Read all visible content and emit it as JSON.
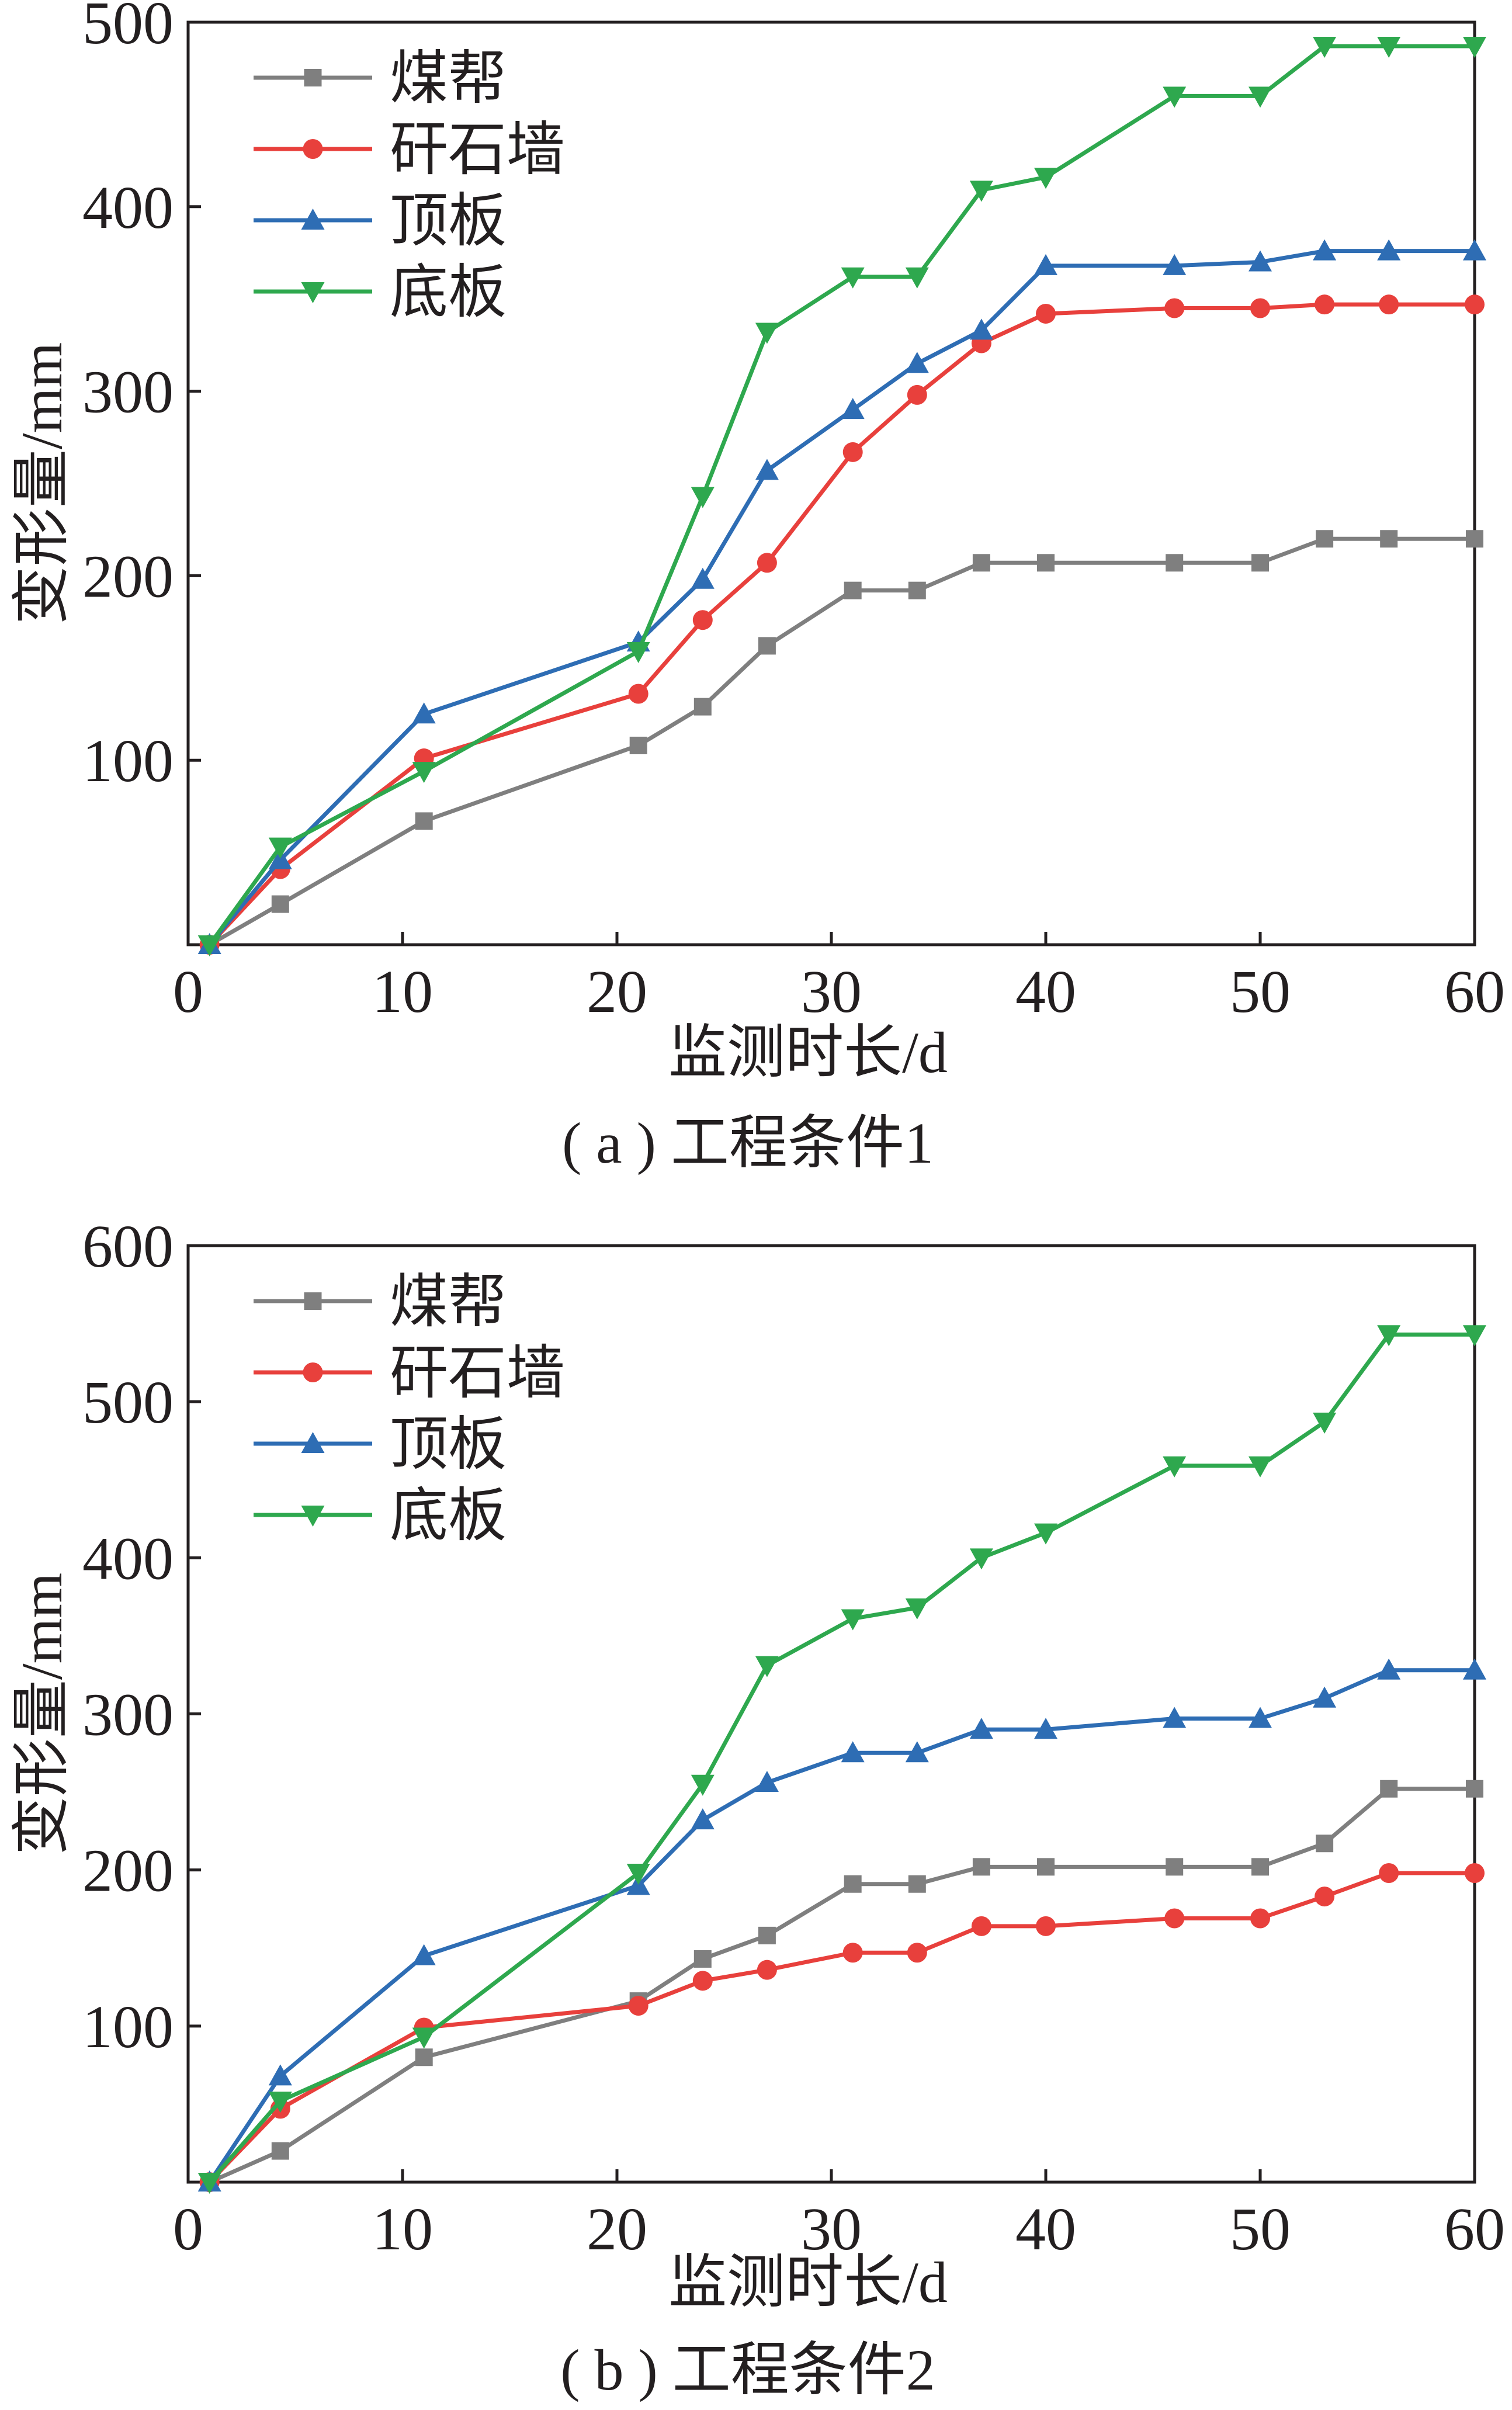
{
  "chart_data": [
    {
      "type": "line",
      "caption": "( a ) 工程条件1",
      "xlabel": "监测时长/d",
      "ylabel": "变形量/mm",
      "xlim": [
        0,
        60
      ],
      "ylim": [
        0,
        500
      ],
      "xticks": [
        0,
        10,
        20,
        30,
        40,
        50,
        60
      ],
      "yticks": [
        100,
        200,
        300,
        400,
        500
      ],
      "legend_position": "top-left",
      "x": [
        1,
        4.3,
        11,
        21,
        24,
        27,
        31,
        34,
        37,
        40,
        46,
        50,
        53,
        56,
        60
      ],
      "series": [
        {
          "name": "煤帮",
          "color": "#7f7f7f",
          "marker": "square",
          "values": [
            0,
            22,
            67,
            108,
            129,
            162,
            192,
            192,
            207,
            207,
            207,
            207,
            220,
            220,
            220
          ]
        },
        {
          "name": "矸石墙",
          "color": "#e8403c",
          "marker": "circle",
          "values": [
            0,
            41,
            101,
            136,
            176,
            207,
            267,
            298,
            326,
            342,
            345,
            345,
            347,
            347,
            347
          ]
        },
        {
          "name": "顶板",
          "color": "#2e6db4",
          "marker": "triangle-up",
          "values": [
            0,
            46,
            125,
            164,
            198,
            257,
            290,
            315,
            333,
            368,
            368,
            370,
            376,
            376,
            376
          ]
        },
        {
          "name": "底板",
          "color": "#2ea84e",
          "marker": "triangle-down",
          "values": [
            0,
            53,
            94,
            159,
            243,
            332,
            362,
            362,
            409,
            416,
            460,
            460,
            487,
            487,
            487
          ]
        }
      ]
    },
    {
      "type": "line",
      "caption": "( b ) 工程条件2",
      "xlabel": "监测时长/d",
      "ylabel": "变形量/mm",
      "xlim": [
        0,
        60
      ],
      "ylim": [
        0,
        600
      ],
      "xticks": [
        0,
        10,
        20,
        30,
        40,
        50,
        60
      ],
      "yticks": [
        100,
        200,
        300,
        400,
        500,
        600
      ],
      "legend_position": "top-left",
      "x": [
        1,
        4.3,
        11,
        21,
        24,
        27,
        31,
        34,
        37,
        40,
        46,
        50,
        53,
        56,
        60
      ],
      "series": [
        {
          "name": "煤帮",
          "color": "#7f7f7f",
          "marker": "square",
          "values": [
            0,
            20,
            80,
            116,
            143,
            158,
            191,
            191,
            202,
            202,
            202,
            202,
            217,
            252,
            252
          ]
        },
        {
          "name": "矸石墙",
          "color": "#e8403c",
          "marker": "circle",
          "values": [
            0,
            47,
            99,
            113,
            129,
            136,
            147,
            147,
            164,
            164,
            169,
            169,
            183,
            198,
            198
          ]
        },
        {
          "name": "顶板",
          "color": "#2e6db4",
          "marker": "triangle-up",
          "values": [
            0,
            68,
            145,
            190,
            232,
            256,
            275,
            275,
            290,
            290,
            297,
            297,
            310,
            328,
            328
          ]
        },
        {
          "name": "底板",
          "color": "#2ea84e",
          "marker": "triangle-down",
          "values": [
            0,
            52,
            93,
            198,
            255,
            331,
            361,
            368,
            400,
            416,
            459,
            459,
            487,
            543,
            543
          ]
        }
      ]
    }
  ]
}
